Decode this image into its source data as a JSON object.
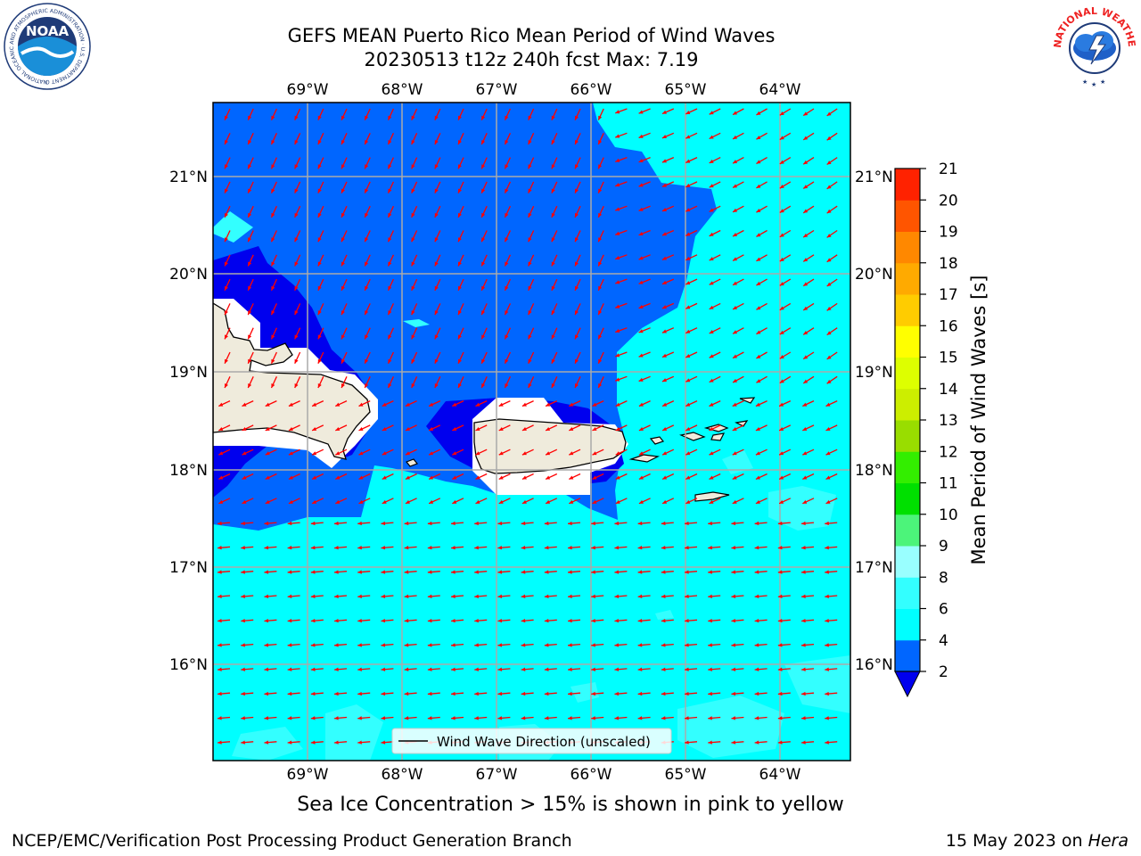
{
  "title": {
    "line1": "GEFS MEAN Puerto Rico Mean Period of Wind Waves",
    "line2": "20230513 t12z 240h fcst   Max: 7.19"
  },
  "map": {
    "lon_labels": [
      "69°W",
      "68°W",
      "67°W",
      "66°W",
      "65°W",
      "64°W"
    ],
    "lat_labels": [
      "21°N",
      "20°N",
      "19°N",
      "18°N",
      "17°N",
      "16°N"
    ],
    "legend_label": "Wind Wave Direction (unscaled)",
    "arrow_color": "#ff0000"
  },
  "colorbar": {
    "label": "Mean Period of Wind Waves [s]",
    "ticks": [
      "2",
      "4",
      "6",
      "8",
      "9",
      "10",
      "11",
      "12",
      "13",
      "14",
      "15",
      "16",
      "17",
      "18",
      "19",
      "20",
      "21"
    ],
    "colors": [
      "#0066ff",
      "#00ffff",
      "#33ffff",
      "#99ffff",
      "#4cf47a",
      "#00e000",
      "#33ee00",
      "#99dd00",
      "#ccee00",
      "#ddff00",
      "#ffff00",
      "#ffcc00",
      "#ffaa00",
      "#ff8800",
      "#ff5500",
      "#ff2200"
    ],
    "under_color": "#0000ee"
  },
  "logos": {
    "noaa_text": "NOAA",
    "noaa_ring": "NATIONAL OCEANIC AND ATMOSPHERIC ADMINISTRATION · U.S. DEPARTMENT OF COMMERCE",
    "nws_ring": "NATIONAL WEATHER SERVICE"
  },
  "footer": {
    "subtitle": "Sea Ice Concentration > 15% is shown in pink to yellow",
    "credit": "NCEP/EMC/Verification Post Processing Product Generation Branch",
    "date": "15 May 2023 on",
    "machine": "Hera"
  }
}
